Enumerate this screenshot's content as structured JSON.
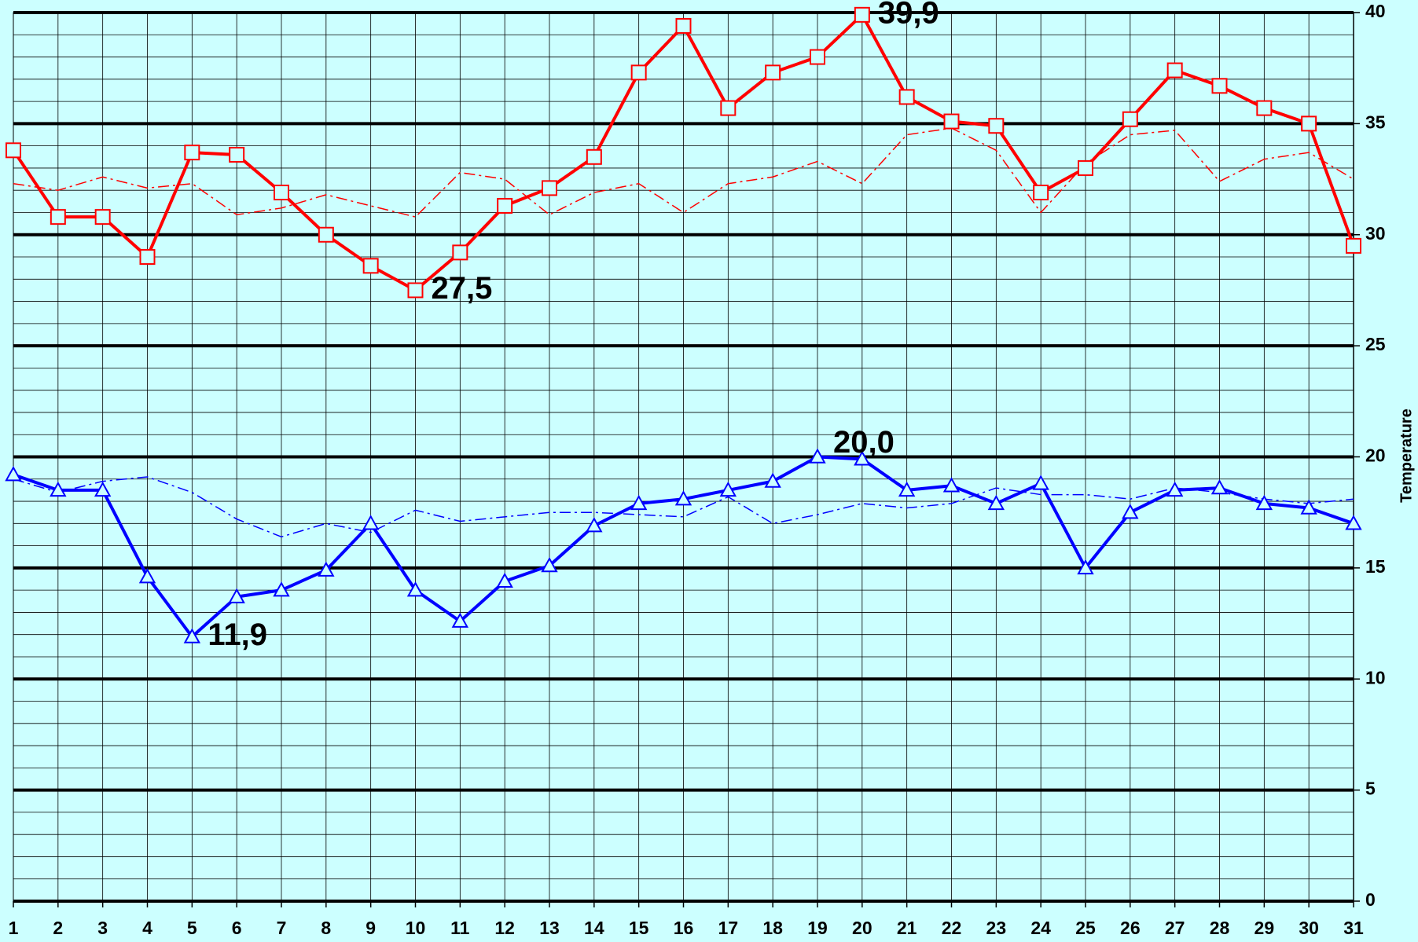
{
  "chart_data": {
    "type": "line",
    "y_label": "Temperature",
    "categories": [
      "1",
      "2",
      "3",
      "4",
      "5",
      "6",
      "7",
      "8",
      "9",
      "10",
      "11",
      "12",
      "13",
      "14",
      "15",
      "16",
      "17",
      "18",
      "19",
      "20",
      "21",
      "22",
      "23",
      "24",
      "25",
      "26",
      "27",
      "28",
      "29",
      "30",
      "31"
    ],
    "ylim": [
      0,
      40
    ],
    "yticks": [
      0,
      5,
      10,
      15,
      20,
      25,
      30,
      35,
      40
    ],
    "minor_yticks": [
      0,
      1,
      2,
      3,
      4,
      5,
      6,
      7,
      8,
      9,
      10,
      11,
      12,
      13,
      14,
      15,
      16,
      17,
      18,
      19,
      20,
      21,
      22,
      23,
      24,
      25,
      26,
      27,
      28,
      29,
      30,
      31,
      32,
      33,
      34,
      35,
      36,
      37,
      38,
      39,
      40
    ],
    "grid": true,
    "background": "#ccffff",
    "series": [
      {
        "color": "#ff0000",
        "line_style": "dashdot",
        "width": 1.5,
        "marker": null,
        "values": [
          32.3,
          32.0,
          32.6,
          32.1,
          32.3,
          30.9,
          31.2,
          31.8,
          31.3,
          30.8,
          32.8,
          32.5,
          30.9,
          31.9,
          32.3,
          31.0,
          32.3,
          32.6,
          33.3,
          32.3,
          34.5,
          34.8,
          33.8,
          31.0,
          33.2,
          34.5,
          34.7,
          32.4,
          33.4,
          33.7,
          32.5
        ]
      },
      {
        "color": "#0000ff",
        "line_style": "dashdot",
        "width": 1.5,
        "marker": null,
        "values": [
          19.0,
          18.4,
          18.9,
          19.1,
          18.4,
          17.2,
          16.4,
          17.0,
          16.6,
          17.6,
          17.1,
          17.3,
          17.5,
          17.5,
          17.4,
          17.3,
          18.2,
          17.0,
          17.4,
          17.9,
          17.7,
          17.9,
          18.6,
          18.3,
          18.3,
          18.1,
          18.6,
          18.4,
          18.1,
          17.9,
          18.1
        ]
      },
      {
        "color": "#ff0000",
        "line_style": "solid",
        "width": 4,
        "marker": "square",
        "label_color": "#ff0000",
        "values": [
          33.8,
          30.8,
          30.8,
          29.0,
          33.7,
          33.6,
          31.9,
          30.0,
          28.6,
          27.5,
          29.2,
          31.3,
          32.1,
          33.5,
          37.3,
          39.4,
          35.7,
          37.3,
          38.0,
          39.9,
          36.2,
          35.1,
          34.9,
          31.9,
          33.0,
          35.2,
          37.4,
          36.7,
          35.7,
          35.0,
          29.5
        ],
        "value_labels": [
          null,
          null,
          null,
          null,
          null,
          null,
          null,
          null,
          null,
          "27,5",
          null,
          null,
          null,
          null,
          null,
          null,
          null,
          null,
          null,
          "39,9",
          null,
          null,
          null,
          null,
          null,
          null,
          null,
          null,
          null,
          null,
          null
        ]
      },
      {
        "color": "#0000ff",
        "line_style": "solid",
        "width": 4,
        "marker": "triangle",
        "label_color": "#000000",
        "values": [
          19.2,
          18.5,
          18.5,
          14.6,
          11.9,
          13.7,
          14.0,
          14.9,
          17.0,
          14.0,
          12.6,
          14.4,
          15.1,
          16.9,
          17.9,
          18.1,
          18.5,
          18.9,
          20.0,
          19.9,
          18.5,
          18.7,
          17.9,
          18.8,
          15.0,
          17.5,
          18.5,
          18.6,
          17.9,
          17.7,
          17.0
        ],
        "value_labels": [
          null,
          null,
          null,
          null,
          "11,9",
          null,
          null,
          null,
          null,
          null,
          null,
          null,
          null,
          null,
          null,
          null,
          null,
          null,
          "20,0",
          null,
          null,
          null,
          null,
          null,
          null,
          null,
          null,
          null,
          null,
          null,
          null
        ]
      }
    ]
  }
}
